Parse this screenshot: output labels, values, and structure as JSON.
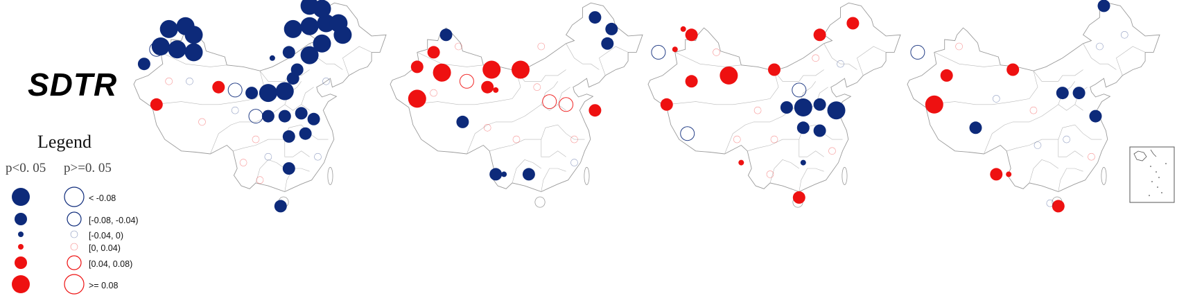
{
  "title": "SDTR",
  "legend": {
    "heading": "Legend",
    "col_significant": "p<0. 05",
    "col_nonsignificant": "p>=0. 05",
    "items": [
      {
        "label": "< -0.08",
        "color": "#0d2a7a",
        "size": 4
      },
      {
        "label": "[-0.08, -0.04)",
        "color": "#0d2a7a",
        "size": 3
      },
      {
        "label": "[-0.04, 0)",
        "color": "#0d2a7a",
        "size": 1
      },
      {
        "label": "[0, 0.04)",
        "color": "#ee1111",
        "size": 1
      },
      {
        "label": "[0.04, 0.08)",
        "color": "#ee1111",
        "size": 3
      },
      {
        "label": ">= 0.08",
        "color": "#ee1111",
        "size": 4
      }
    ]
  },
  "colors": {
    "negative": "#0d2a7a",
    "positive": "#ee1111",
    "outline": "#9a9a9a"
  },
  "maps": [
    {
      "name": "map-1",
      "stations": [
        {
          "lon": 82,
          "lat": 49,
          "v": -0.1,
          "sig": true
        },
        {
          "lon": 86,
          "lat": 49.5,
          "v": -0.1,
          "sig": true
        },
        {
          "lon": 88,
          "lat": 48,
          "v": -0.1,
          "sig": true
        },
        {
          "lon": 80,
          "lat": 46,
          "v": -0.1,
          "sig": true
        },
        {
          "lon": 84,
          "lat": 45.5,
          "v": -0.1,
          "sig": true
        },
        {
          "lon": 88,
          "lat": 45,
          "v": -0.1,
          "sig": true
        },
        {
          "lon": 76,
          "lat": 43,
          "v": -0.05,
          "sig": true
        },
        {
          "lon": 79,
          "lat": 45.5,
          "v": -0.06,
          "sig": false
        },
        {
          "lon": 79,
          "lat": 36,
          "v": 0.06,
          "sig": true
        },
        {
          "lon": 94,
          "lat": 39,
          "v": 0.06,
          "sig": true
        },
        {
          "lon": 98,
          "lat": 38.5,
          "v": -0.06,
          "sig": false
        },
        {
          "lon": 102,
          "lat": 38,
          "v": -0.05,
          "sig": true
        },
        {
          "lon": 106,
          "lat": 38,
          "v": -0.1,
          "sig": true
        },
        {
          "lon": 110,
          "lat": 38.3,
          "v": -0.1,
          "sig": true
        },
        {
          "lon": 112,
          "lat": 40.5,
          "v": -0.05,
          "sig": true
        },
        {
          "lon": 113,
          "lat": 42,
          "v": -0.05,
          "sig": true
        },
        {
          "lon": 107,
          "lat": 44,
          "v": -0.02,
          "sig": true
        },
        {
          "lon": 111,
          "lat": 45,
          "v": -0.05,
          "sig": true
        },
        {
          "lon": 116,
          "lat": 44.5,
          "v": -0.1,
          "sig": true
        },
        {
          "lon": 119,
          "lat": 46.5,
          "v": -0.1,
          "sig": true
        },
        {
          "lon": 112,
          "lat": 49,
          "v": -0.1,
          "sig": true
        },
        {
          "lon": 116,
          "lat": 49.5,
          "v": -0.1,
          "sig": true
        },
        {
          "lon": 120,
          "lat": 50,
          "v": -0.1,
          "sig": true
        },
        {
          "lon": 123,
          "lat": 50,
          "v": -0.1,
          "sig": true
        },
        {
          "lon": 124,
          "lat": 48,
          "v": -0.1,
          "sig": true
        },
        {
          "lon": 116,
          "lat": 53,
          "v": -0.1,
          "sig": true
        },
        {
          "lon": 119,
          "lat": 52.5,
          "v": -0.1,
          "sig": true
        },
        {
          "lon": 103,
          "lat": 34,
          "v": -0.06,
          "sig": false
        },
        {
          "lon": 106,
          "lat": 34,
          "v": -0.05,
          "sig": true
        },
        {
          "lon": 110,
          "lat": 34,
          "v": -0.05,
          "sig": true
        },
        {
          "lon": 114,
          "lat": 34.5,
          "v": -0.05,
          "sig": true
        },
        {
          "lon": 117,
          "lat": 33.5,
          "v": -0.05,
          "sig": true
        },
        {
          "lon": 111,
          "lat": 30.5,
          "v": -0.05,
          "sig": true
        },
        {
          "lon": 115,
          "lat": 31,
          "v": -0.05,
          "sig": true
        },
        {
          "lon": 111,
          "lat": 25,
          "v": -0.05,
          "sig": true
        },
        {
          "lon": 109,
          "lat": 18.5,
          "v": -0.05,
          "sig": true
        },
        {
          "lon": 98,
          "lat": 35,
          "v": -0.02,
          "sig": false
        },
        {
          "lon": 103,
          "lat": 30,
          "v": 0.02,
          "sig": false
        },
        {
          "lon": 100,
          "lat": 26,
          "v": 0.02,
          "sig": false
        },
        {
          "lon": 106,
          "lat": 27,
          "v": -0.02,
          "sig": false
        },
        {
          "lon": 87,
          "lat": 40,
          "v": -0.02,
          "sig": false
        },
        {
          "lon": 90,
          "lat": 33,
          "v": 0.02,
          "sig": false
        },
        {
          "lon": 82,
          "lat": 40,
          "v": 0.02,
          "sig": false
        },
        {
          "lon": 120,
          "lat": 40,
          "v": -0.02,
          "sig": false
        },
        {
          "lon": 118,
          "lat": 27,
          "v": -0.02,
          "sig": false
        },
        {
          "lon": 104,
          "lat": 23,
          "v": 0.02,
          "sig": false
        }
      ]
    },
    {
      "name": "map-2",
      "stations": [
        {
          "lon": 87,
          "lat": 48,
          "v": -0.05,
          "sig": true
        },
        {
          "lon": 84,
          "lat": 45,
          "v": 0.06,
          "sig": true
        },
        {
          "lon": 80,
          "lat": 42.5,
          "v": 0.06,
          "sig": true
        },
        {
          "lon": 86,
          "lat": 41.5,
          "v": 0.1,
          "sig": true
        },
        {
          "lon": 98,
          "lat": 42,
          "v": 0.1,
          "sig": true
        },
        {
          "lon": 105,
          "lat": 42,
          "v": 0.1,
          "sig": true
        },
        {
          "lon": 80,
          "lat": 37,
          "v": 0.1,
          "sig": true
        },
        {
          "lon": 97,
          "lat": 39,
          "v": 0.06,
          "sig": true
        },
        {
          "lon": 99,
          "lat": 38.5,
          "v": 0.02,
          "sig": true
        },
        {
          "lon": 92,
          "lat": 40,
          "v": 0.06,
          "sig": false
        },
        {
          "lon": 91,
          "lat": 33,
          "v": -0.05,
          "sig": true
        },
        {
          "lon": 99,
          "lat": 24,
          "v": -0.05,
          "sig": true
        },
        {
          "lon": 101,
          "lat": 24,
          "v": -0.02,
          "sig": true
        },
        {
          "lon": 107,
          "lat": 24,
          "v": -0.05,
          "sig": true
        },
        {
          "lon": 123,
          "lat": 35,
          "v": 0.06,
          "sig": true
        },
        {
          "lon": 123,
          "lat": 51,
          "v": -0.05,
          "sig": true
        },
        {
          "lon": 127,
          "lat": 49,
          "v": -0.05,
          "sig": true
        },
        {
          "lon": 126,
          "lat": 46.5,
          "v": -0.05,
          "sig": true
        },
        {
          "lon": 116,
          "lat": 36,
          "v": 0.06,
          "sig": false
        },
        {
          "lon": 112,
          "lat": 36.5,
          "v": 0.06,
          "sig": false
        },
        {
          "lon": 109,
          "lat": 39,
          "v": 0.02,
          "sig": false
        },
        {
          "lon": 118,
          "lat": 30,
          "v": 0.02,
          "sig": false
        },
        {
          "lon": 104,
          "lat": 30,
          "v": 0.02,
          "sig": false
        },
        {
          "lon": 97,
          "lat": 32,
          "v": 0.02,
          "sig": false
        },
        {
          "lon": 84,
          "lat": 38,
          "v": 0.02,
          "sig": false
        },
        {
          "lon": 110,
          "lat": 46,
          "v": 0.02,
          "sig": false
        },
        {
          "lon": 118,
          "lat": 26,
          "v": -0.02,
          "sig": false
        },
        {
          "lon": 90,
          "lat": 46,
          "v": 0.02,
          "sig": false
        }
      ]
    },
    {
      "name": "map-3",
      "stations": [
        {
          "lon": 82,
          "lat": 49,
          "v": 0.02,
          "sig": true
        },
        {
          "lon": 84,
          "lat": 48,
          "v": 0.06,
          "sig": true
        },
        {
          "lon": 80,
          "lat": 45.5,
          "v": 0.02,
          "sig": true
        },
        {
          "lon": 76,
          "lat": 45,
          "v": -0.06,
          "sig": false
        },
        {
          "lon": 84,
          "lat": 40,
          "v": 0.06,
          "sig": true
        },
        {
          "lon": 93,
          "lat": 41,
          "v": 0.1,
          "sig": true
        },
        {
          "lon": 104,
          "lat": 42,
          "v": 0.06,
          "sig": true
        },
        {
          "lon": 115,
          "lat": 48,
          "v": 0.06,
          "sig": true
        },
        {
          "lon": 123,
          "lat": 50,
          "v": 0.06,
          "sig": true
        },
        {
          "lon": 78,
          "lat": 36,
          "v": 0.06,
          "sig": true
        },
        {
          "lon": 83,
          "lat": 31,
          "v": -0.06,
          "sig": false
        },
        {
          "lon": 107,
          "lat": 35.5,
          "v": -0.05,
          "sig": true
        },
        {
          "lon": 111,
          "lat": 35.5,
          "v": -0.1,
          "sig": true
        },
        {
          "lon": 115,
          "lat": 36,
          "v": -0.05,
          "sig": true
        },
        {
          "lon": 119,
          "lat": 35,
          "v": -0.1,
          "sig": true
        },
        {
          "lon": 111,
          "lat": 32,
          "v": -0.05,
          "sig": true
        },
        {
          "lon": 115,
          "lat": 31.5,
          "v": -0.05,
          "sig": true
        },
        {
          "lon": 110,
          "lat": 38.5,
          "v": -0.06,
          "sig": false
        },
        {
          "lon": 111,
          "lat": 26,
          "v": -0.02,
          "sig": true
        },
        {
          "lon": 96,
          "lat": 26,
          "v": 0.02,
          "sig": true
        },
        {
          "lon": 110,
          "lat": 20,
          "v": 0.06,
          "sig": true
        },
        {
          "lon": 100,
          "lat": 35,
          "v": 0.02,
          "sig": false
        },
        {
          "lon": 95,
          "lat": 30,
          "v": 0.02,
          "sig": false
        },
        {
          "lon": 104,
          "lat": 30,
          "v": 0.02,
          "sig": false
        },
        {
          "lon": 120,
          "lat": 43,
          "v": -0.02,
          "sig": false
        },
        {
          "lon": 114,
          "lat": 44,
          "v": 0.02,
          "sig": false
        },
        {
          "lon": 118,
          "lat": 28,
          "v": 0.02,
          "sig": false
        },
        {
          "lon": 90,
          "lat": 45,
          "v": 0.02,
          "sig": false
        },
        {
          "lon": 103,
          "lat": 24,
          "v": 0.02,
          "sig": false
        }
      ]
    },
    {
      "name": "map-4",
      "stations": [
        {
          "lon": 121,
          "lat": 53,
          "v": -0.05,
          "sig": true
        },
        {
          "lon": 76,
          "lat": 45,
          "v": -0.06,
          "sig": false
        },
        {
          "lon": 83,
          "lat": 41,
          "v": 0.06,
          "sig": true
        },
        {
          "lon": 99,
          "lat": 42,
          "v": 0.06,
          "sig": true
        },
        {
          "lon": 80,
          "lat": 36,
          "v": 0.1,
          "sig": true
        },
        {
          "lon": 111,
          "lat": 38,
          "v": -0.05,
          "sig": true
        },
        {
          "lon": 115,
          "lat": 38,
          "v": -0.05,
          "sig": true
        },
        {
          "lon": 119,
          "lat": 34,
          "v": -0.05,
          "sig": true
        },
        {
          "lon": 90,
          "lat": 32,
          "v": -0.05,
          "sig": true
        },
        {
          "lon": 95,
          "lat": 24,
          "v": 0.06,
          "sig": true
        },
        {
          "lon": 98,
          "lat": 24,
          "v": 0.02,
          "sig": true
        },
        {
          "lon": 110,
          "lat": 18.5,
          "v": 0.06,
          "sig": true
        },
        {
          "lon": 108,
          "lat": 19,
          "v": -0.02,
          "sig": false
        },
        {
          "lon": 86,
          "lat": 46,
          "v": 0.02,
          "sig": false
        },
        {
          "lon": 104,
          "lat": 35,
          "v": 0.02,
          "sig": false
        },
        {
          "lon": 95,
          "lat": 37,
          "v": -0.02,
          "sig": false
        },
        {
          "lon": 120,
          "lat": 46,
          "v": -0.02,
          "sig": false
        },
        {
          "lon": 105,
          "lat": 29,
          "v": -0.02,
          "sig": false
        },
        {
          "lon": 118,
          "lat": 27,
          "v": 0.02,
          "sig": false
        },
        {
          "lon": 112,
          "lat": 30,
          "v": -0.02,
          "sig": false
        },
        {
          "lon": 126,
          "lat": 48,
          "v": -0.02,
          "sig": false
        }
      ]
    }
  ]
}
